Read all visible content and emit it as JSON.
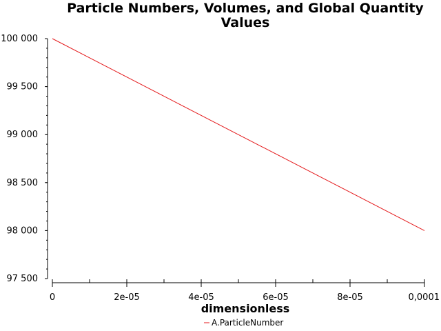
{
  "chart_data": {
    "type": "line",
    "title_lines": [
      "Particle Numbers, Volumes, and Global Quantity",
      "Values"
    ],
    "xlabel": "dimensionless",
    "ylabel": "",
    "xlim": [
      0,
      0.0001
    ],
    "ylim": [
      97500,
      100000
    ],
    "x_ticks": [
      {
        "value": 0,
        "label": "0"
      },
      {
        "value": 2e-05,
        "label": "2e-05"
      },
      {
        "value": 4e-05,
        "label": "4e-05"
      },
      {
        "value": 6e-05,
        "label": "6e-05"
      },
      {
        "value": 8e-05,
        "label": "8e-05"
      },
      {
        "value": 0.0001,
        "label": "0,0001"
      }
    ],
    "y_ticks": [
      {
        "value": 100000,
        "label": "100 000"
      },
      {
        "value": 99500,
        "label": "99 500"
      },
      {
        "value": 99000,
        "label": "99 000"
      },
      {
        "value": 98500,
        "label": "98 500"
      },
      {
        "value": 98000,
        "label": "98 000"
      },
      {
        "value": 97500,
        "label": "97 500"
      }
    ],
    "grid": false,
    "legend_position": "bottom-center",
    "series": [
      {
        "name": "A.ParticleNumber",
        "color": "#e41a1c",
        "x": [
          0,
          0.0001
        ],
        "y": [
          100000,
          98000
        ]
      }
    ]
  }
}
